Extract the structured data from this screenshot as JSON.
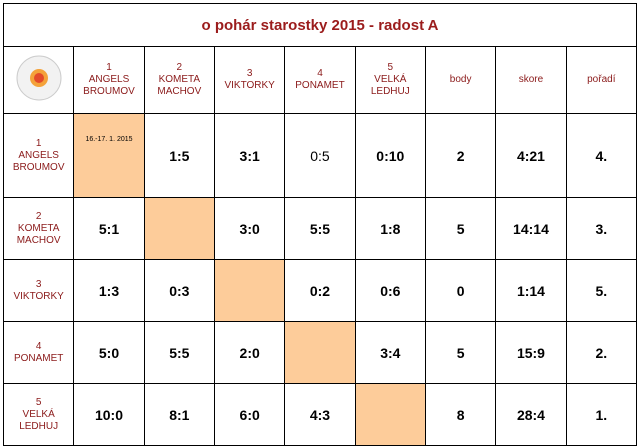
{
  "title": "o pohár starostky 2015 - radost A",
  "columns": {
    "body": "body",
    "skore": "skore",
    "poradi": "pořadí"
  },
  "teams": [
    {
      "number": "1",
      "name": "ANGELS BROUMOV"
    },
    {
      "number": "2",
      "name": "KOMETA MACHOV"
    },
    {
      "number": "3",
      "name": "VIKTORKY"
    },
    {
      "number": "4",
      "name": "PONAMET"
    },
    {
      "number": "5",
      "name": "VELKÁ LEDHUJ"
    }
  ],
  "rows": [
    {
      "cells": [
        "16.-17. 1. 2015",
        "1:5",
        "3:1",
        "0:5",
        "0:10"
      ],
      "body": 2,
      "skore": "4:21",
      "poradi": "4."
    },
    {
      "cells": [
        "5:1",
        null,
        "3:0",
        "5:5",
        "1:8"
      ],
      "body": 5,
      "skore": "14:14",
      "poradi": "3."
    },
    {
      "cells": [
        "1:3",
        "0:3",
        null,
        "0:2",
        "0:6"
      ],
      "body": 0,
      "skore": "1:14",
      "poradi": "5."
    },
    {
      "cells": [
        "5:0",
        "5:5",
        "2:0",
        null,
        "3:4"
      ],
      "body": 5,
      "skore": "15:9",
      "poradi": "2."
    },
    {
      "cells": [
        "10:0",
        "8:1",
        "6:0",
        "4:3",
        null
      ],
      "body": 8,
      "skore": "28:4",
      "poradi": "1."
    }
  ]
}
